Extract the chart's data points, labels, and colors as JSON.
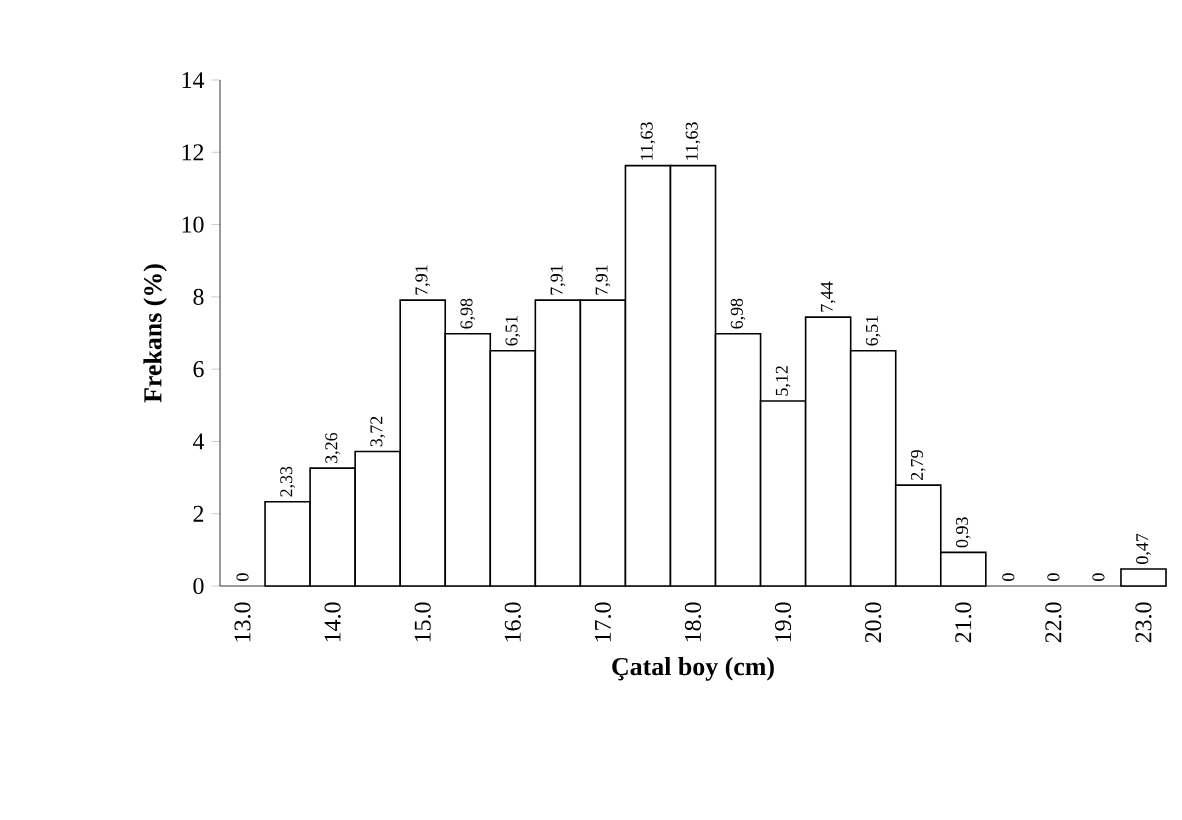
{
  "chart_data": {
    "type": "bar",
    "xlabel": "Çatal boy (cm)",
    "ylabel": "Frekans (%)",
    "categories": [
      "13.0",
      null,
      "14.0",
      null,
      "15.0",
      null,
      "16.0",
      null,
      "17.0",
      null,
      "18.0",
      null,
      "19.0",
      null,
      "20.0",
      null,
      "21.0",
      null,
      "22.0",
      null,
      "23.0"
    ],
    "values": [
      0,
      2.33,
      3.26,
      3.72,
      7.91,
      6.98,
      6.51,
      7.91,
      7.91,
      11.63,
      11.63,
      6.98,
      5.12,
      7.44,
      6.51,
      2.79,
      0.93,
      0,
      0,
      0,
      0.47
    ],
    "value_labels": [
      "0",
      "2,33",
      "3,26",
      "3,72",
      "7,91",
      "6,98",
      "6,51",
      "7,91",
      "7,91",
      "11,63",
      "11,63",
      "6,98",
      "5,12",
      "7,44",
      "6,51",
      "2,79",
      "0,93",
      "0",
      "0",
      "0",
      "0,47"
    ],
    "color": "#ffffff",
    "ylim": [
      0,
      14
    ],
    "yticks": [
      0,
      2,
      4,
      6,
      8,
      10,
      12,
      14
    ],
    "grid": false
  }
}
